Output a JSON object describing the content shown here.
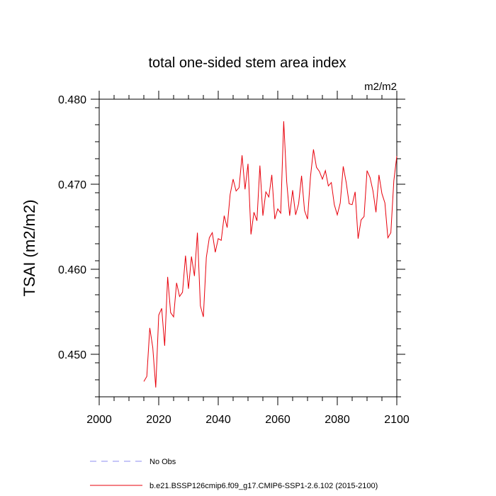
{
  "chart_data": {
    "type": "line",
    "title": "total one-sided stem area index",
    "units": "m2/m2",
    "ylabel": "TSAI  (m2/m2)",
    "xlabel": "",
    "xlim": [
      2000,
      2100
    ],
    "ylim": [
      0.445,
      0.48
    ],
    "x_ticks": [
      2000,
      2020,
      2040,
      2060,
      2080,
      2100
    ],
    "y_ticks": [
      0.45,
      0.46,
      0.47,
      0.48
    ],
    "y_tick_labels": [
      "0.450",
      "0.460",
      "0.470",
      "0.480"
    ],
    "grid": false,
    "colors": {
      "series": "#e8000b",
      "obs": "#8c8cf0"
    },
    "legend": [
      {
        "label": "No Obs",
        "style": "dashed"
      },
      {
        "label": "b.e21.BSSP126cmip6.f09_g17.CMIP6-SSP1-2.6.102 (2015-2100)",
        "style": "solid"
      }
    ],
    "series": [
      {
        "name": "b.e21.BSSP126cmip6.f09_g17.CMIP6-SSP1-2.6.102 (2015-2100)",
        "x": [
          2015,
          2016,
          2017,
          2018,
          2019,
          2020,
          2021,
          2022,
          2023,
          2024,
          2025,
          2026,
          2027,
          2028,
          2029,
          2030,
          2031,
          2032,
          2033,
          2034,
          2035,
          2036,
          2037,
          2038,
          2039,
          2040,
          2041,
          2042,
          2043,
          2044,
          2045,
          2046,
          2047,
          2048,
          2049,
          2050,
          2051,
          2052,
          2053,
          2054,
          2055,
          2056,
          2057,
          2058,
          2059,
          2060,
          2061,
          2062,
          2063,
          2064,
          2065,
          2066,
          2067,
          2068,
          2069,
          2070,
          2071,
          2072,
          2073,
          2074,
          2075,
          2076,
          2077,
          2078,
          2079,
          2080,
          2081,
          2082,
          2083,
          2084,
          2085,
          2086,
          2087,
          2088,
          2089,
          2090,
          2091,
          2092,
          2093,
          2094,
          2095,
          2096,
          2097,
          2098,
          2099,
          2100
        ],
        "values": [
          0.4468,
          0.4474,
          0.4531,
          0.4508,
          0.4461,
          0.4546,
          0.4554,
          0.451,
          0.4591,
          0.4549,
          0.4544,
          0.4584,
          0.4568,
          0.4573,
          0.4616,
          0.4577,
          0.4615,
          0.4592,
          0.4643,
          0.4557,
          0.4544,
          0.4614,
          0.4637,
          0.4643,
          0.462,
          0.4636,
          0.4634,
          0.4663,
          0.4649,
          0.4688,
          0.4706,
          0.4692,
          0.4696,
          0.4734,
          0.4694,
          0.4724,
          0.4641,
          0.4667,
          0.4657,
          0.4722,
          0.4663,
          0.4691,
          0.4685,
          0.4711,
          0.4659,
          0.4671,
          0.4666,
          0.4774,
          0.4703,
          0.4663,
          0.4693,
          0.4664,
          0.4677,
          0.471,
          0.4669,
          0.4659,
          0.4709,
          0.4741,
          0.472,
          0.4715,
          0.4706,
          0.4716,
          0.4698,
          0.4702,
          0.4676,
          0.4664,
          0.4678,
          0.4721,
          0.4702,
          0.4677,
          0.4676,
          0.4691,
          0.4636,
          0.4658,
          0.4662,
          0.4716,
          0.4708,
          0.4692,
          0.4667,
          0.4711,
          0.4689,
          0.4678,
          0.4637,
          0.4643,
          0.4704,
          0.4733
        ]
      }
    ]
  }
}
